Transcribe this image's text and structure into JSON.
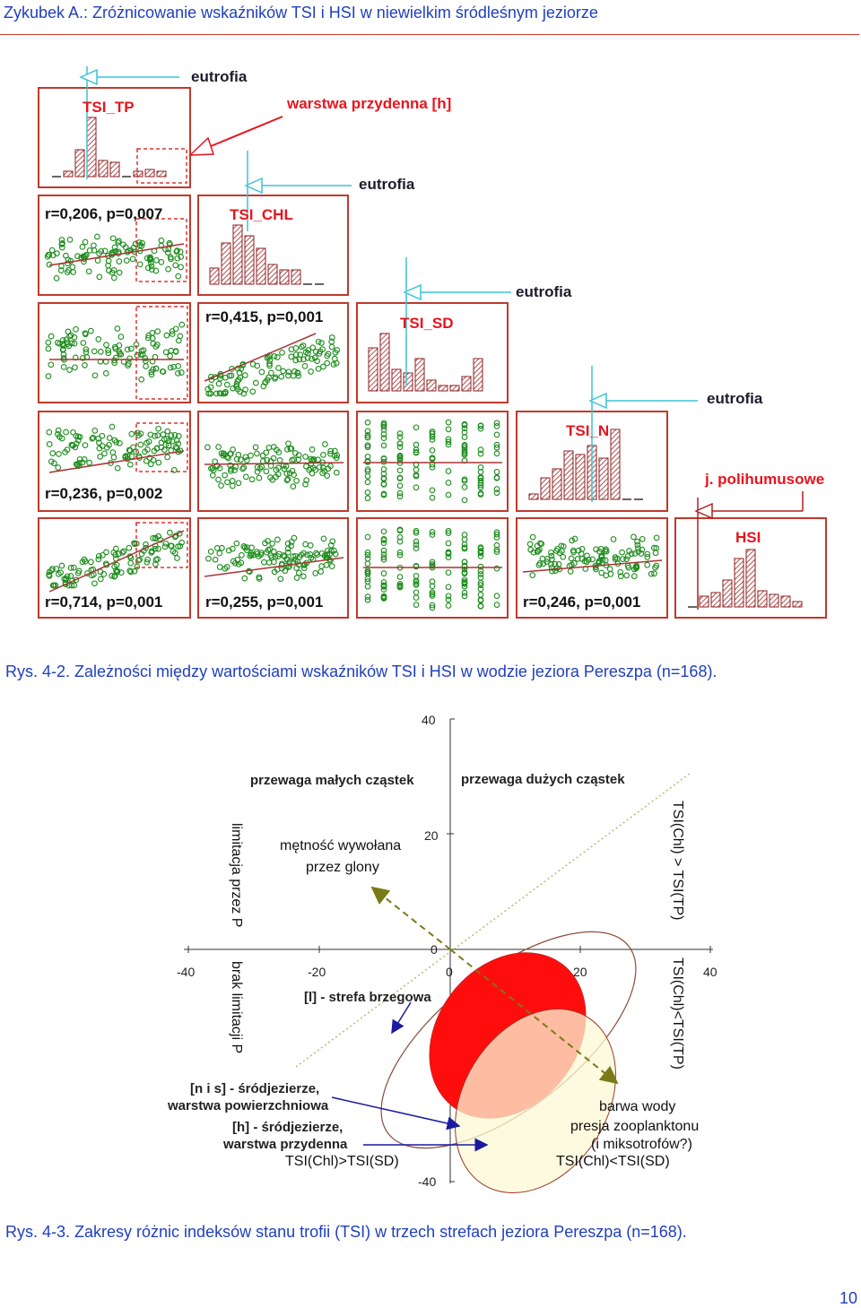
{
  "header": {
    "title": "Zykubek A.: Zróżnicowanie wskaźników TSI i HSI w niewielkim śródleśnym jeziorze"
  },
  "figure1": {
    "caption": "Rys. 4-2. Zależności między wartościami wskaźników TSI i HSI w wodzie jeziora Pereszpa (n=168).",
    "diagonal_labels": [
      "TSI_TP",
      "TSI_CHL",
      "TSI_SD",
      "TSI_N",
      "HSI"
    ],
    "eutrofia_label": "eutrofia",
    "warstwa_label": "warstwa przydenna [h]",
    "polihumus_label": "j. polihumusowe",
    "correlations": {
      "chl_tp": "r=0,206, p=0,007",
      "sd_chl": "r=0,415, p=0,001",
      "n_tp": "r=0,236, p=0,002",
      "hsi_tp": "r=0,714, p=0,001",
      "hsi_chl": "r=0,255, p=0,001",
      "hsi_n": "r=0,246, p=0,001"
    }
  },
  "figure2": {
    "caption": "Rys. 4-3. Zakresy różnic indeksów stanu trofii (TSI) w trzech strefach jeziora Pereszpa (n=168).",
    "ticks": {
      "y40": "40",
      "y20": "20",
      "y0": "0",
      "yneg40": "-40",
      "xneg40": "-40",
      "xneg20": "-20",
      "x0": "0",
      "x20": "20",
      "x40": "40"
    },
    "labels": {
      "small_particles": "przewaga małych cząstek",
      "large_particles": "przewaga dużych cząstek",
      "turbidity_line1": "mętność wywołana",
      "turbidity_line2": "przez glony",
      "p_limitation": "limitacja przez P",
      "no_p_limitation": "brak limitacji P",
      "chl_gt_tp": "TSI(Chl) > TSI(TP)",
      "chl_lt_tp": "TSI(Chl)<TSI(TP)",
      "shore_zone": "[l] - strefa brzegowa",
      "ns_line1": "[n i s] - śródjezierze,",
      "ns_line2": "warstwa powierzchniowa",
      "h_line1": "[h] - śródjezierze,",
      "h_line2": "warstwa przydenna",
      "chl_gt_sd": "TSI(Chl)>TSI(SD)",
      "chl_lt_sd": "TSI(Chl)<TSI(SD)",
      "water_color": "barwa wody",
      "zoo_line1": "presja zooplanktonu",
      "zoo_line2": "(i miksotrofów?)"
    }
  },
  "page": {
    "number": "10"
  }
}
